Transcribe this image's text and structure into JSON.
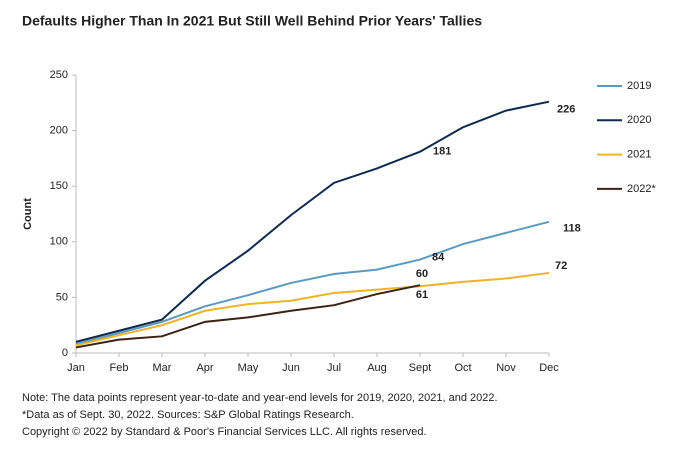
{
  "chart_data": {
    "type": "line",
    "title": "Defaults Higher Than In 2021 But Still Well Behind Prior Years' Tallies",
    "y_label": "Count",
    "categories": [
      "Jan",
      "Feb",
      "Mar",
      "Apr",
      "May",
      "Jun",
      "Jul",
      "Aug",
      "Sept",
      "Oct",
      "Nov",
      "Dec"
    ],
    "ylim": [
      0,
      250
    ],
    "yticks": [
      0,
      50,
      100,
      150,
      200,
      250
    ],
    "legend": "right",
    "series": [
      {
        "name": "2019",
        "color": "#5b9bc0",
        "values": [
          8,
          18,
          28,
          42,
          52,
          63,
          71,
          75,
          84,
          98,
          108,
          118
        ],
        "value_labels": [
          null,
          null,
          null,
          null,
          null,
          null,
          null,
          null,
          "84",
          null,
          null,
          "118"
        ]
      },
      {
        "name": "2020",
        "color": "#0e2a4f",
        "values": [
          10,
          20,
          30,
          65,
          92,
          124,
          153,
          166,
          181,
          203,
          218,
          226
        ],
        "value_labels": [
          null,
          null,
          null,
          null,
          null,
          null,
          null,
          null,
          "181",
          null,
          null,
          "226"
        ]
      },
      {
        "name": "2021",
        "color": "#f0b323",
        "values": [
          7,
          16,
          25,
          38,
          44,
          47,
          54,
          57,
          60,
          64,
          67,
          72
        ],
        "value_labels": [
          null,
          null,
          null,
          null,
          null,
          null,
          null,
          null,
          "60",
          null,
          null,
          "72"
        ]
      },
      {
        "name": "2022*",
        "color": "#3b2316",
        "values": [
          5,
          12,
          15,
          28,
          32,
          38,
          43,
          53,
          61,
          null,
          null,
          null
        ],
        "value_labels": [
          null,
          null,
          null,
          null,
          null,
          null,
          null,
          null,
          "61",
          null,
          null,
          null
        ]
      }
    ],
    "notes": [
      "Note: The data points represent year-to-date and year-end levels for 2019, 2020, 2021, and 2022.",
      "*Data as of Sept. 30, 2022. Sources: S&P Global Ratings Research.",
      "Copyright © 2022 by Standard & Poor's Financial Services LLC. All rights reserved."
    ]
  }
}
